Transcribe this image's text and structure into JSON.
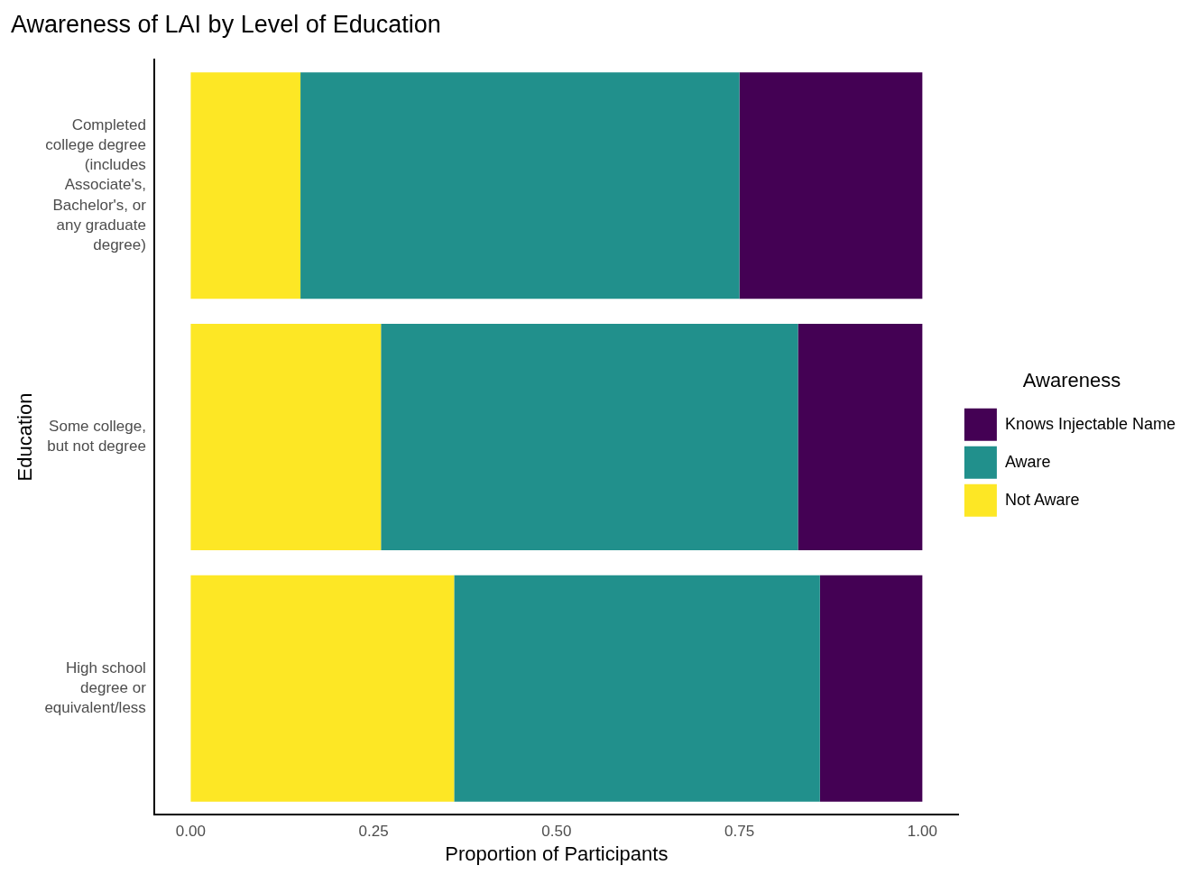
{
  "chart_data": {
    "type": "bar",
    "title": "Awareness of LAI by Level of Education",
    "xlabel": "Proportion of Participants",
    "ylabel": "Education",
    "legend_title": "Awareness",
    "orientation": "horizontal",
    "stacked": true,
    "legend": "right",
    "grid": false,
    "categories": [
      "Completed college degree (includes Associate's, Bachelor's, or any graduate degree)",
      "Some college, but not degree",
      "High school degree or equivalent/less"
    ],
    "series": [
      {
        "name": "Not Aware",
        "color": "#fde725",
        "values": [
          0.15,
          0.26,
          0.36
        ]
      },
      {
        "name": "Aware",
        "color": "#21908c",
        "values": [
          0.6,
          0.57,
          0.5
        ]
      },
      {
        "name": "Knows Injectable Name",
        "color": "#440154",
        "values": [
          0.25,
          0.17,
          0.14
        ]
      }
    ],
    "xlim": [
      -0.05,
      1.05
    ],
    "xticks": [
      {
        "value": 0,
        "label": "0.00"
      },
      {
        "value": 0.25,
        "label": "0.25"
      },
      {
        "value": 0.5,
        "label": "0.50"
      },
      {
        "value": 0.75,
        "label": "0.75"
      },
      {
        "value": 1,
        "label": "1.00"
      }
    ]
  }
}
